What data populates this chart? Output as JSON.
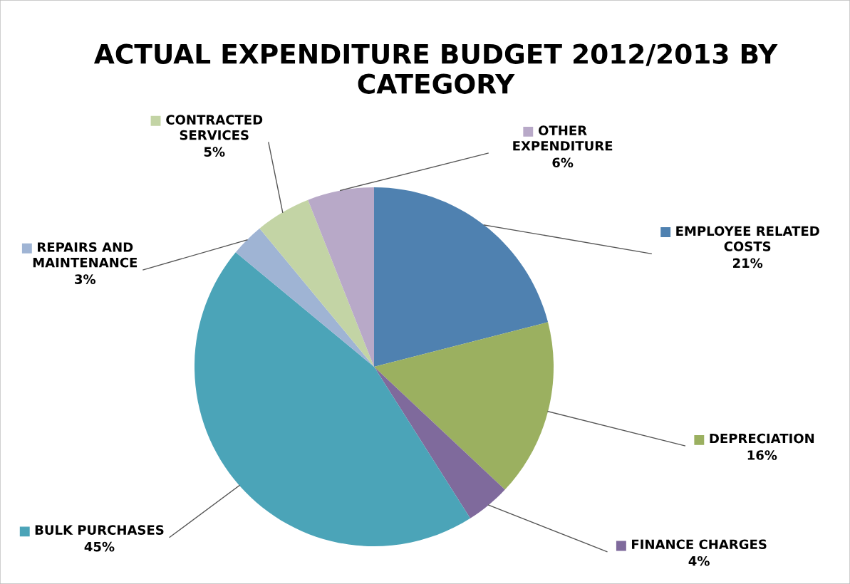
{
  "chart_data": {
    "type": "pie",
    "title": "ACTUAL EXPENDITURE BUDGET 2012/2013 BY\nCATEGORY",
    "categories": [
      "EMPLOYEE RELATED\nCOSTS",
      "DEPRECIATION",
      "FINANCE CHARGES",
      "BULK PURCHASES",
      "REPAIRS AND\nMAINTENANCE",
      "CONTRACTED\nSERVICES",
      "OTHER\nEXPENDITURE"
    ],
    "values": [
      21,
      16,
      4,
      45,
      3,
      5,
      6
    ],
    "value_labels": [
      "21%",
      "16%",
      "4%",
      "45%",
      "3%",
      "5%",
      "6%"
    ],
    "legend": "top right",
    "colors": [
      "#4f81b0",
      "#9bb060",
      "#7f6a9c",
      "#4ba4b8",
      "#9fb4d4",
      "#c3d4a5",
      "#b8a9c8"
    ]
  }
}
